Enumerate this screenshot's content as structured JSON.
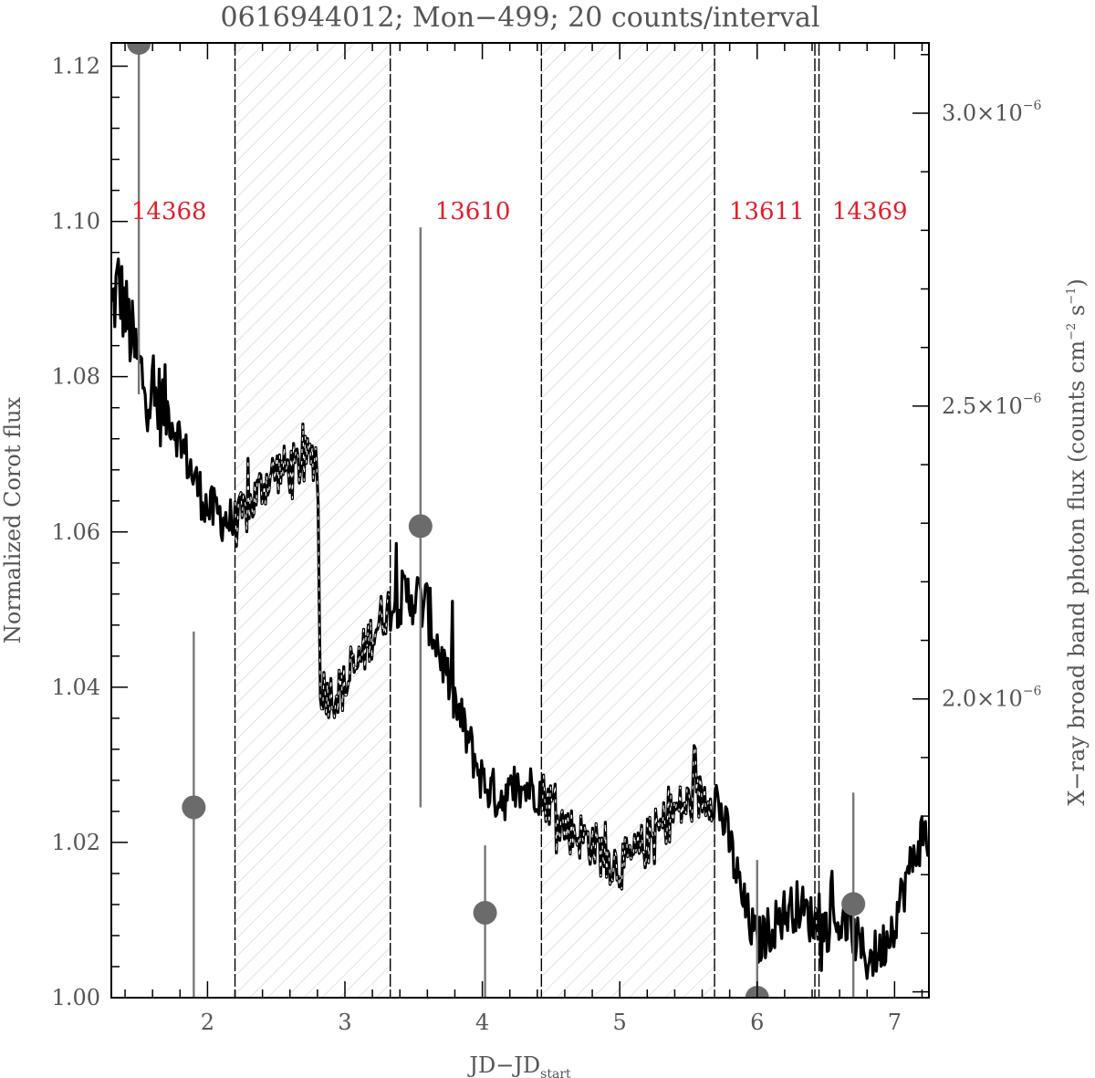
{
  "chart_data": {
    "type": "line",
    "title": "0616944012; Mon−499; 20 counts/interval",
    "xlabel": "JD−JD",
    "xlabel_sub": "start",
    "ylabel": "Normalized Corot flux",
    "y2label_main": "X−ray broad band photon flux (counts cm",
    "y2label_sup1": "−2",
    "y2label_mid": " s",
    "y2label_sup2": "−1",
    "y2label_end": ")",
    "xlim": [
      1.3,
      7.25
    ],
    "ylim": [
      1.0,
      1.123
    ],
    "y2lim": [
      1.49e-06,
      3.12e-06
    ],
    "x_ticks": [
      "2",
      "3",
      "4",
      "5",
      "6",
      "7"
    ],
    "y_ticks": [
      "1.00",
      "1.02",
      "1.04",
      "1.06",
      "1.08",
      "1.10",
      "1.12"
    ],
    "y2_ticks": [
      {
        "value": 2e-06,
        "mantissa": "2.0×10",
        "exp": "−6"
      },
      {
        "value": 2.5e-06,
        "mantissa": "2.5×10",
        "exp": "−6"
      },
      {
        "value": 3e-06,
        "mantissa": "3.0×10",
        "exp": "−6"
      }
    ],
    "observation_boundaries": [
      2.2,
      3.33,
      4.43,
      5.69,
      6.42,
      6.45
    ],
    "hatched_intervals": [
      [
        2.2,
        3.33
      ],
      [
        4.43,
        5.69
      ],
      [
        6.42,
        6.45
      ]
    ],
    "observation_labels": [
      {
        "label": "14368",
        "x": 1.72
      },
      {
        "label": "13610",
        "x": 3.93
      },
      {
        "label": "13611",
        "x": 6.07
      },
      {
        "label": "14369",
        "x": 6.82
      }
    ],
    "corot_anchor_points": {
      "x": [
        1.3,
        1.35,
        1.42,
        1.5,
        1.6,
        1.7,
        1.8,
        1.9,
        2.0,
        2.1,
        2.2,
        2.3,
        2.4,
        2.5,
        2.6,
        2.7,
        2.8,
        2.82,
        2.9,
        3.0,
        3.1,
        3.2,
        3.3,
        3.4,
        3.5,
        3.6,
        3.7,
        3.8,
        3.9,
        4.0,
        4.1,
        4.2,
        4.3,
        4.4,
        4.5,
        4.6,
        4.7,
        4.8,
        4.9,
        5.0,
        5.1,
        5.2,
        5.3,
        5.4,
        5.5,
        5.6,
        5.7,
        5.8,
        5.9,
        6.0,
        6.1,
        6.2,
        6.3,
        6.4,
        6.5,
        6.6,
        6.7,
        6.8,
        6.9,
        7.0,
        7.1,
        7.2
      ],
      "y": [
        1.088,
        1.092,
        1.087,
        1.081,
        1.077,
        1.076,
        1.072,
        1.067,
        1.063,
        1.062,
        1.061,
        1.063,
        1.066,
        1.068,
        1.068,
        1.069,
        1.07,
        1.04,
        1.039,
        1.04,
        1.043,
        1.047,
        1.05,
        1.051,
        1.052,
        1.05,
        1.044,
        1.038,
        1.033,
        1.028,
        1.026,
        1.026,
        1.027,
        1.027,
        1.025,
        1.022,
        1.021,
        1.02,
        1.018,
        1.017,
        1.018,
        1.02,
        1.022,
        1.024,
        1.025,
        1.026,
        1.026,
        1.02,
        1.012,
        1.007,
        1.009,
        1.011,
        1.012,
        1.01,
        1.009,
        1.01,
        1.008,
        1.005,
        1.006,
        1.01,
        1.016,
        1.021
      ]
    },
    "xray_points": {
      "x": [
        1.5,
        1.9,
        3.55,
        4.02,
        6.0,
        6.7
      ],
      "y": [
        3.12e-06,
        1.815e-06,
        2.295e-06,
        1.635e-06,
        1.49e-06,
        1.65e-06
      ],
      "err_low": [
        2.52e-06,
        1.49e-06,
        1.815e-06,
        1.49e-06,
        1.49e-06,
        1.49e-06
      ],
      "err_high": [
        3.12e-06,
        2.115e-06,
        2.805e-06,
        1.75e-06,
        1.725e-06,
        1.84e-06
      ]
    }
  }
}
